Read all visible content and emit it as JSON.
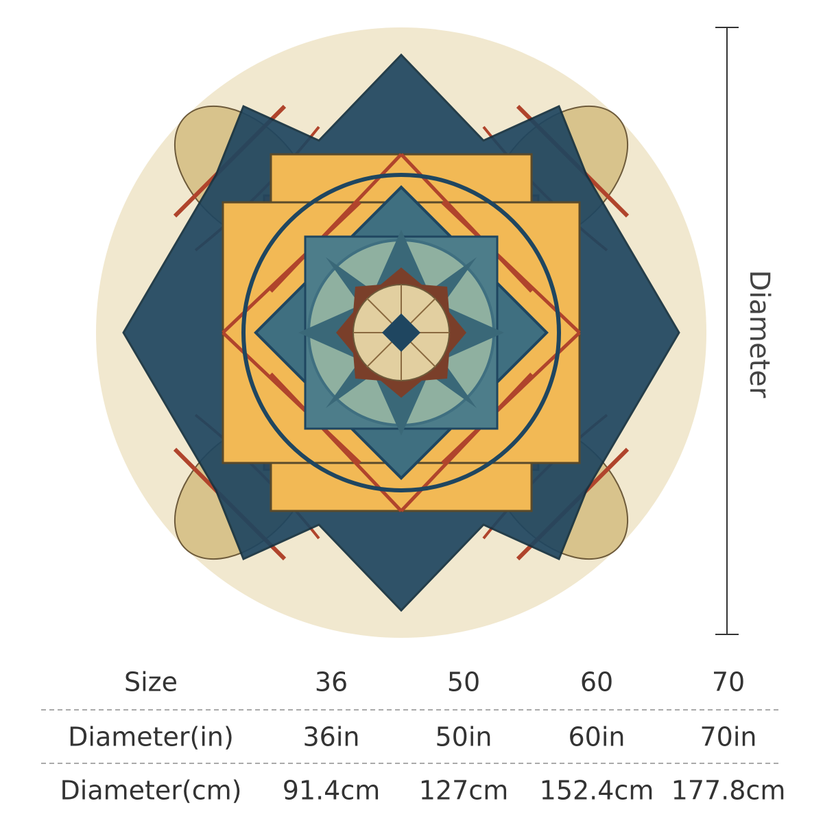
{
  "dimension_label": "Diameter",
  "table": {
    "rows": [
      [
        "Size",
        "36",
        "50",
        "60",
        "70"
      ],
      [
        "Diameter(in)",
        "36in",
        "50in",
        "60in",
        "70in"
      ],
      [
        "Diameter(cm)",
        "91.4cm",
        "127cm",
        "152.4cm",
        "177.8cm"
      ]
    ]
  }
}
